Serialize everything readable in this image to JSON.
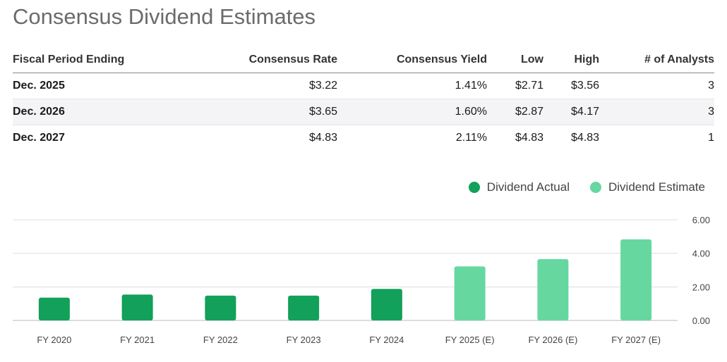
{
  "title": "Consensus Dividend Estimates",
  "table": {
    "headers": [
      "Fiscal Period Ending",
      "Consensus Rate",
      "Consensus Yield",
      "Low",
      "High",
      "# of Analysts"
    ],
    "rows": [
      [
        "Dec. 2025",
        "$3.22",
        "1.41%",
        "$2.71",
        "$3.56",
        "3"
      ],
      [
        "Dec. 2026",
        "$3.65",
        "1.60%",
        "$2.87",
        "$4.17",
        "3"
      ],
      [
        "Dec. 2027",
        "$4.83",
        "2.11%",
        "$4.83",
        "$4.83",
        "1"
      ]
    ]
  },
  "legend": {
    "actual_label": "Dividend Actual",
    "estimate_label": "Dividend Estimate"
  },
  "colors": {
    "actual": "#12a05a",
    "estimate": "#66d89f",
    "gridline": "#dddddd",
    "title": "#6b6b6b"
  },
  "chart_data": {
    "type": "bar",
    "categories": [
      "FY 2020",
      "FY 2021",
      "FY 2022",
      "FY 2023",
      "FY 2024",
      "FY 2025 (E)",
      "FY 2026 (E)",
      "FY 2027 (E)"
    ],
    "series": [
      {
        "name": "Dividend Actual",
        "values": [
          1.36,
          1.54,
          1.48,
          1.48,
          1.88,
          null,
          null,
          null
        ]
      },
      {
        "name": "Dividend Estimate",
        "values": [
          null,
          null,
          null,
          null,
          null,
          3.22,
          3.65,
          4.83
        ]
      }
    ],
    "yticks": [
      "0.00",
      "2.00",
      "4.00",
      "6.00"
    ],
    "ylim": [
      0,
      6
    ],
    "y_axis_side": "right",
    "grid": true,
    "legend_position": "top-right",
    "xlabel": "",
    "ylabel": ""
  }
}
